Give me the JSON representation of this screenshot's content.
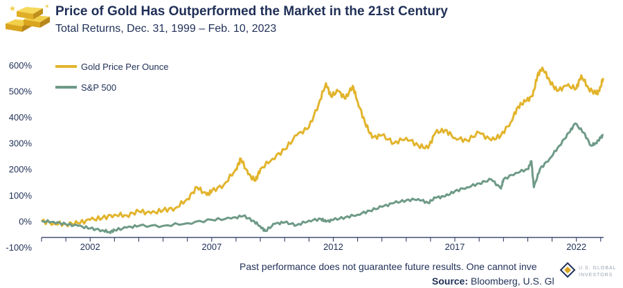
{
  "title": "Price of Gold Has Outperformed the Market in the 21st Century",
  "subtitle": "Total Returns, Dec. 31, 1999 – Feb. 10, 2023",
  "footer": {
    "disclaimer": "Past performance does not guarantee future results. One cannot inve",
    "source_label": "Source:",
    "source_text": " Bloomberg, U.S. Gl"
  },
  "colors": {
    "gold": "#e2b42c",
    "sp500": "#6e9a87",
    "axis": "#1f2f57"
  },
  "icons": {
    "logo": "gold-bars-icon",
    "brand": "us-global-investors-logo-icon"
  },
  "chart_data": {
    "type": "line",
    "title": "Price of Gold Has Outperformed the Market in the 21st Century",
    "xlabel": "",
    "ylabel": "",
    "xlim": [
      2000.0,
      2023.12
    ],
    "ylim": [
      -100,
      650
    ],
    "yticks": [
      -100,
      0,
      100,
      200,
      300,
      400,
      500,
      600
    ],
    "ytick_labels": [
      "-100%",
      "0%",
      "100%",
      "200%",
      "300%",
      "400%",
      "500%",
      "600%"
    ],
    "xticks": [
      2002,
      2007,
      2012,
      2017,
      2022
    ],
    "xtick_labels": [
      "2002",
      "2007",
      "2012",
      "2017",
      "2022"
    ],
    "grid": false,
    "legend_position": "top-left",
    "series": [
      {
        "name": "Gold Price Per Ounce",
        "color": "#e2b42c",
        "x": [
          2000.0,
          2000.5,
          2001.0,
          2001.5,
          2002.0,
          2002.5,
          2003.0,
          2003.5,
          2004.0,
          2004.5,
          2005.0,
          2005.5,
          2006.0,
          2006.4,
          2006.8,
          2007.0,
          2007.5,
          2008.0,
          2008.2,
          2008.5,
          2008.8,
          2009.0,
          2009.5,
          2010.0,
          2010.5,
          2011.0,
          2011.4,
          2011.7,
          2011.9,
          2012.2,
          2012.5,
          2012.8,
          2013.0,
          2013.3,
          2013.6,
          2014.0,
          2014.5,
          2015.0,
          2015.5,
          2015.9,
          2016.2,
          2016.6,
          2017.0,
          2017.5,
          2018.0,
          2018.5,
          2018.9,
          2019.3,
          2019.6,
          2019.9,
          2020.2,
          2020.4,
          2020.6,
          2020.9,
          2021.2,
          2021.6,
          2022.0,
          2022.2,
          2022.5,
          2022.8,
          2022.95,
          2023.1
        ],
        "y": [
          0,
          -8,
          -12,
          -8,
          5,
          12,
          25,
          22,
          38,
          30,
          42,
          50,
          85,
          130,
          100,
          115,
          140,
          200,
          240,
          180,
          155,
          200,
          240,
          275,
          330,
          360,
          450,
          530,
          480,
          500,
          470,
          520,
          460,
          380,
          320,
          330,
          300,
          320,
          290,
          280,
          340,
          350,
          320,
          310,
          340,
          310,
          330,
          380,
          440,
          460,
          480,
          560,
          590,
          540,
          500,
          520,
          510,
          560,
          510,
          490,
          500,
          550
        ]
      },
      {
        "name": "S&P 500",
        "color": "#6e9a87",
        "x": [
          2000.0,
          2000.5,
          2001.0,
          2001.5,
          2002.0,
          2002.5,
          2002.8,
          2003.0,
          2003.5,
          2004.0,
          2005.0,
          2006.0,
          2007.0,
          2007.8,
          2008.3,
          2008.7,
          2009.0,
          2009.2,
          2009.6,
          2010.0,
          2010.5,
          2011.0,
          2011.5,
          2011.7,
          2012.0,
          2012.5,
          2013.0,
          2013.5,
          2014.0,
          2014.5,
          2015.0,
          2015.5,
          2015.9,
          2016.2,
          2016.6,
          2017.0,
          2017.5,
          2018.0,
          2018.5,
          2018.9,
          2019.0,
          2019.5,
          2020.0,
          2020.15,
          2020.25,
          2020.5,
          2020.9,
          2021.3,
          2021.7,
          2021.95,
          2022.3,
          2022.6,
          2022.8,
          2023.0,
          2023.1
        ],
        "y": [
          0,
          -3,
          -12,
          -18,
          -28,
          -35,
          -42,
          -35,
          -25,
          -18,
          -18,
          -8,
          5,
          10,
          20,
          2,
          -20,
          -38,
          -10,
          -5,
          -15,
          2,
          8,
          -2,
          5,
          15,
          25,
          40,
          55,
          70,
          80,
          85,
          70,
          90,
          95,
          115,
          130,
          145,
          160,
          125,
          160,
          185,
          200,
          230,
          130,
          200,
          240,
          290,
          340,
          375,
          340,
          290,
          300,
          320,
          330
        ]
      }
    ]
  }
}
